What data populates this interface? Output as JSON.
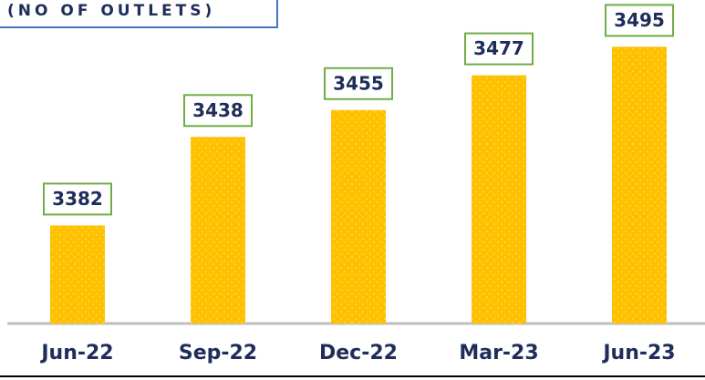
{
  "chart_data": {
    "type": "bar",
    "title": "(NO OF OUTLETS)",
    "categories": [
      "Jun-22",
      "Sep-22",
      "Dec-22",
      "Mar-23",
      "Jun-23"
    ],
    "values": [
      3382,
      3438,
      3455,
      3477,
      3495
    ],
    "color": "#ffc000",
    "label_border_color": "#70ad47",
    "ylim": [
      3320,
      3520
    ]
  }
}
